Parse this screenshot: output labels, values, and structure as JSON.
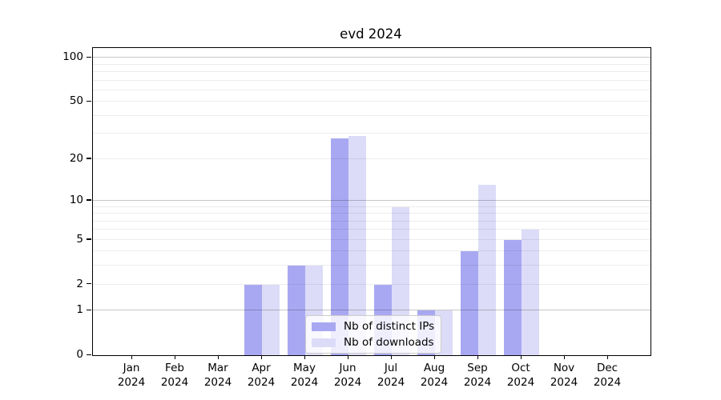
{
  "chart_data": {
    "type": "bar",
    "title": "evd 2024",
    "categories": [
      "Jan",
      "Feb",
      "Mar",
      "Apr",
      "May",
      "Jun",
      "Jul",
      "Aug",
      "Sep",
      "Oct",
      "Nov",
      "Dec"
    ],
    "year_label": "2024",
    "series": [
      {
        "name": "Nb of distinct IPs",
        "color": "#a8a8f2",
        "values": [
          0,
          0,
          0,
          2,
          3,
          28,
          2,
          1,
          4,
          5,
          0,
          0
        ]
      },
      {
        "name": "Nb of downloads",
        "color": "#dcdcf8",
        "values": [
          0,
          0,
          0,
          2,
          3,
          29,
          9,
          1,
          13,
          6,
          0,
          0
        ]
      }
    ],
    "yticks": [
      0,
      1,
      2,
      5,
      10,
      20,
      50,
      100
    ],
    "major_gridlines": [
      1,
      10,
      100
    ],
    "minor_gridlines": [
      2,
      3,
      4,
      5,
      6,
      7,
      8,
      9,
      20,
      30,
      40,
      50,
      60,
      70,
      80,
      90
    ],
    "scale": "log1p",
    "ylim": [
      0,
      116.6
    ],
    "grid": true,
    "legend_position": "lower-center"
  },
  "colors": {
    "background": "#ffffff",
    "axis": "#000000",
    "major_grid": "#c8c8c8",
    "minor_grid": "#ececec"
  }
}
